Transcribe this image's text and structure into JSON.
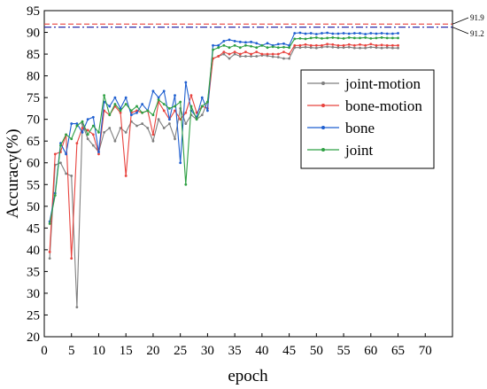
{
  "chart_data": {
    "type": "line",
    "xlabel": "epoch",
    "ylabel": "Accuracy(%)",
    "xlim": [
      0,
      75
    ],
    "ylim": [
      20,
      95
    ],
    "xticks": [
      0,
      5,
      10,
      15,
      20,
      25,
      30,
      35,
      40,
      45,
      50,
      55,
      60,
      65,
      70
    ],
    "yticks": [
      20,
      25,
      30,
      35,
      40,
      45,
      50,
      55,
      60,
      65,
      70,
      75,
      80,
      85,
      90,
      95
    ],
    "legend_position": "center-right",
    "reference_lines": [
      {
        "value": 91.9,
        "label": "91.9",
        "color": "#e8433e",
        "style": "dashed"
      },
      {
        "value": 91.2,
        "label": "91.2",
        "color": "#2a2aa8",
        "style": "dash-dot"
      }
    ],
    "x": [
      1,
      2,
      3,
      4,
      5,
      6,
      7,
      8,
      9,
      10,
      11,
      12,
      13,
      14,
      15,
      16,
      17,
      18,
      19,
      20,
      21,
      22,
      23,
      24,
      25,
      26,
      27,
      28,
      29,
      30,
      31,
      32,
      33,
      34,
      35,
      36,
      37,
      38,
      39,
      40,
      41,
      42,
      43,
      44,
      45,
      46,
      47,
      48,
      49,
      50,
      51,
      52,
      53,
      54,
      55,
      56,
      57,
      58,
      59,
      60,
      61,
      62,
      63,
      64,
      65
    ],
    "series": [
      {
        "name": "joint-motion",
        "color": "#7f7f7f",
        "values": [
          38,
          59.5,
          60,
          57.5,
          57,
          26.8,
          69,
          65.5,
          64,
          62.5,
          67,
          68,
          65,
          68,
          67,
          69.5,
          68.5,
          69,
          68,
          65,
          70,
          68,
          69,
          65.5,
          72.5,
          69,
          71,
          70,
          71,
          74,
          84,
          84.5,
          85,
          84,
          85,
          84.5,
          84.5,
          84.5,
          84.5,
          84.7,
          84.6,
          84.4,
          84.3,
          84,
          84,
          86.5,
          86.5,
          86.6,
          86.5,
          86.4,
          86.6,
          86.7,
          86.6,
          86.5,
          86.5,
          86.6,
          86.4,
          86.4,
          86.4,
          86.6,
          86.5,
          86.4,
          86.5,
          86.4,
          86.4
        ]
      },
      {
        "name": "bone-motion",
        "color": "#e8433e",
        "values": [
          39.5,
          62,
          62.5,
          66.5,
          38,
          64.5,
          68,
          67.5,
          66.5,
          62,
          72,
          71,
          73,
          71.5,
          57,
          71.5,
          72,
          71.5,
          72,
          66.5,
          74,
          72,
          70,
          72,
          70,
          71.5,
          75.5,
          71.5,
          73,
          72.5,
          84,
          84.5,
          85.5,
          85,
          85.5,
          85,
          85.5,
          85,
          85.5,
          85,
          85,
          85,
          85,
          85.5,
          85,
          87,
          87,
          87.2,
          87,
          87,
          87,
          87.3,
          87.2,
          87,
          87,
          87.2,
          87,
          87.2,
          87,
          87.3,
          87,
          87.1,
          87,
          87,
          87
        ]
      },
      {
        "name": "bone",
        "color": "#1f5fd0",
        "values": [
          46.5,
          53,
          64.5,
          62,
          69,
          69,
          67,
          70,
          70.5,
          62.5,
          74,
          73,
          75,
          72.5,
          75,
          71,
          71.5,
          73.5,
          72,
          76.5,
          75,
          76.5,
          70,
          75.5,
          60,
          78.5,
          72,
          70.5,
          75,
          72,
          87,
          87,
          88,
          88.3,
          88,
          87.8,
          87.7,
          87.8,
          87.5,
          87,
          87.5,
          87,
          87.3,
          87.4,
          87,
          89.8,
          89.9,
          89.7,
          89.8,
          89.6,
          89.8,
          89.9,
          89.7,
          89.7,
          89.8,
          89.7,
          89.8,
          89.8,
          89.6,
          89.8,
          89.7,
          89.8,
          89.7,
          89.7,
          89.8
        ]
      },
      {
        "name": "joint",
        "color": "#2ea043",
        "values": [
          46,
          52.5,
          64,
          66.5,
          65.5,
          68.5,
          69.5,
          66.5,
          68.5,
          67,
          75.5,
          71,
          73.5,
          72,
          73.5,
          72,
          73,
          71.5,
          72,
          71,
          74.5,
          73.5,
          72.5,
          73,
          74,
          55,
          73,
          70,
          73,
          74,
          86,
          86.5,
          87,
          86.5,
          87,
          86.5,
          87,
          86.8,
          86.5,
          87,
          86.5,
          86.7,
          86.5,
          86.6,
          86.5,
          88.5,
          88.6,
          88.5,
          88.7,
          88.8,
          88.6,
          88.7,
          88.8,
          88.7,
          88.6,
          88.8,
          88.7,
          88.7,
          88.8,
          88.6,
          88.7,
          88.8,
          88.7,
          88.7,
          88.7
        ]
      }
    ]
  }
}
